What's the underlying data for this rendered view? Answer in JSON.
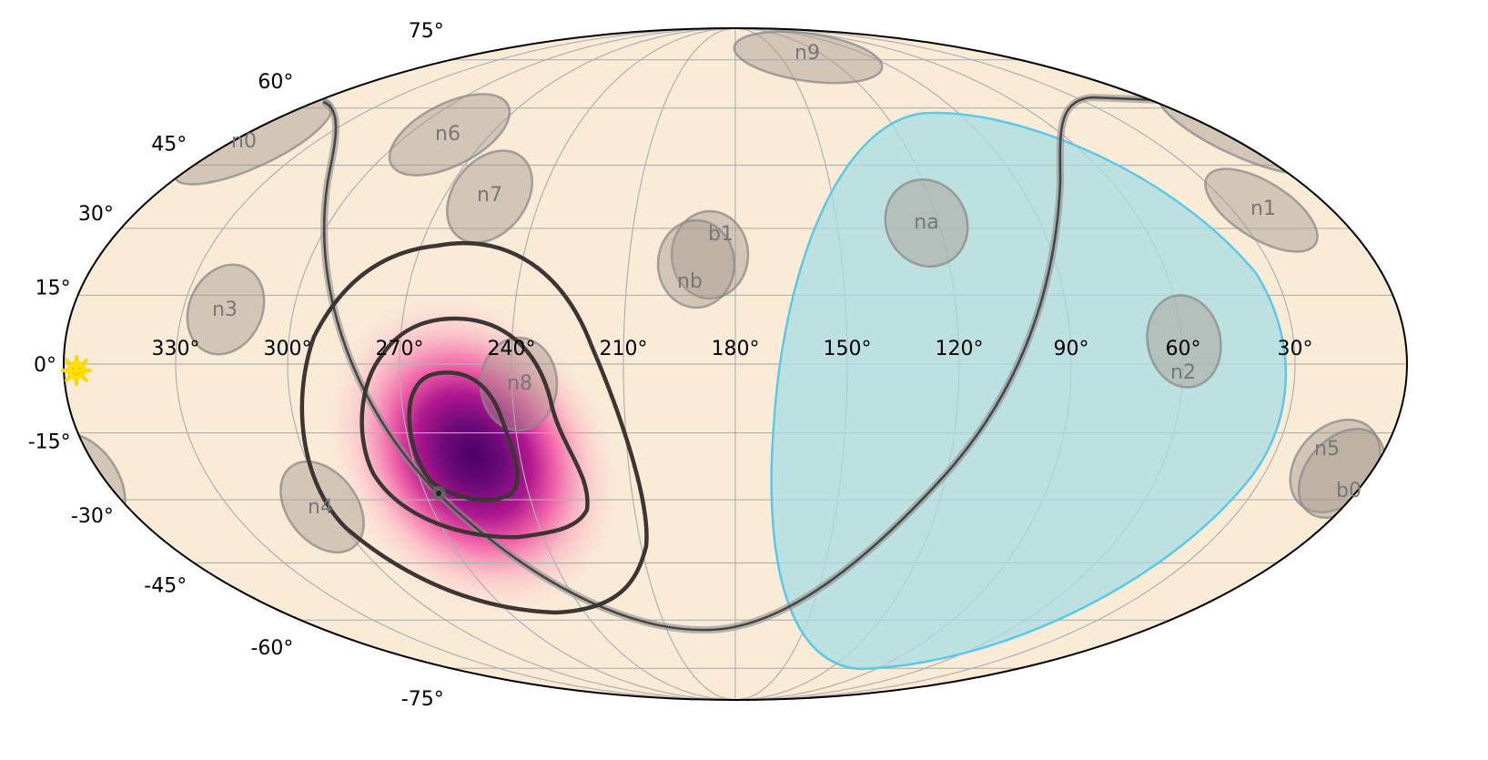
{
  "chart_data": {
    "type": "heatmap",
    "projection": "mollweide",
    "title": "",
    "grid": true,
    "lon_ticks": [
      "330°",
      "300°",
      "270°",
      "240°",
      "210°",
      "180°",
      "150°",
      "120°",
      "90°",
      "60°",
      "30°"
    ],
    "lon_values": [
      330,
      300,
      270,
      240,
      210,
      180,
      150,
      120,
      90,
      60,
      30
    ],
    "lat_ticks": [
      "75°",
      "60°",
      "45°",
      "30°",
      "15°",
      "0°",
      "-15°",
      "-30°",
      "-45°",
      "-60°",
      "-75°"
    ],
    "lat_values": [
      75,
      60,
      45,
      30,
      15,
      0,
      -15,
      -30,
      -45,
      -60,
      -75
    ],
    "detectors": [
      "n0",
      "n1",
      "n2",
      "n3",
      "n4",
      "n5",
      "n6",
      "n7",
      "n8",
      "n9",
      "na",
      "nb",
      "b0",
      "b1"
    ],
    "markers": {
      "sun": "sun-icon"
    },
    "colors": {
      "sky": "#faebd7",
      "earth_occult": "#a8dce4",
      "earth_edge": "#5bc8e8",
      "contour": "#3d3533",
      "peak": "#4b0068",
      "detector": "#a79a8e"
    }
  }
}
